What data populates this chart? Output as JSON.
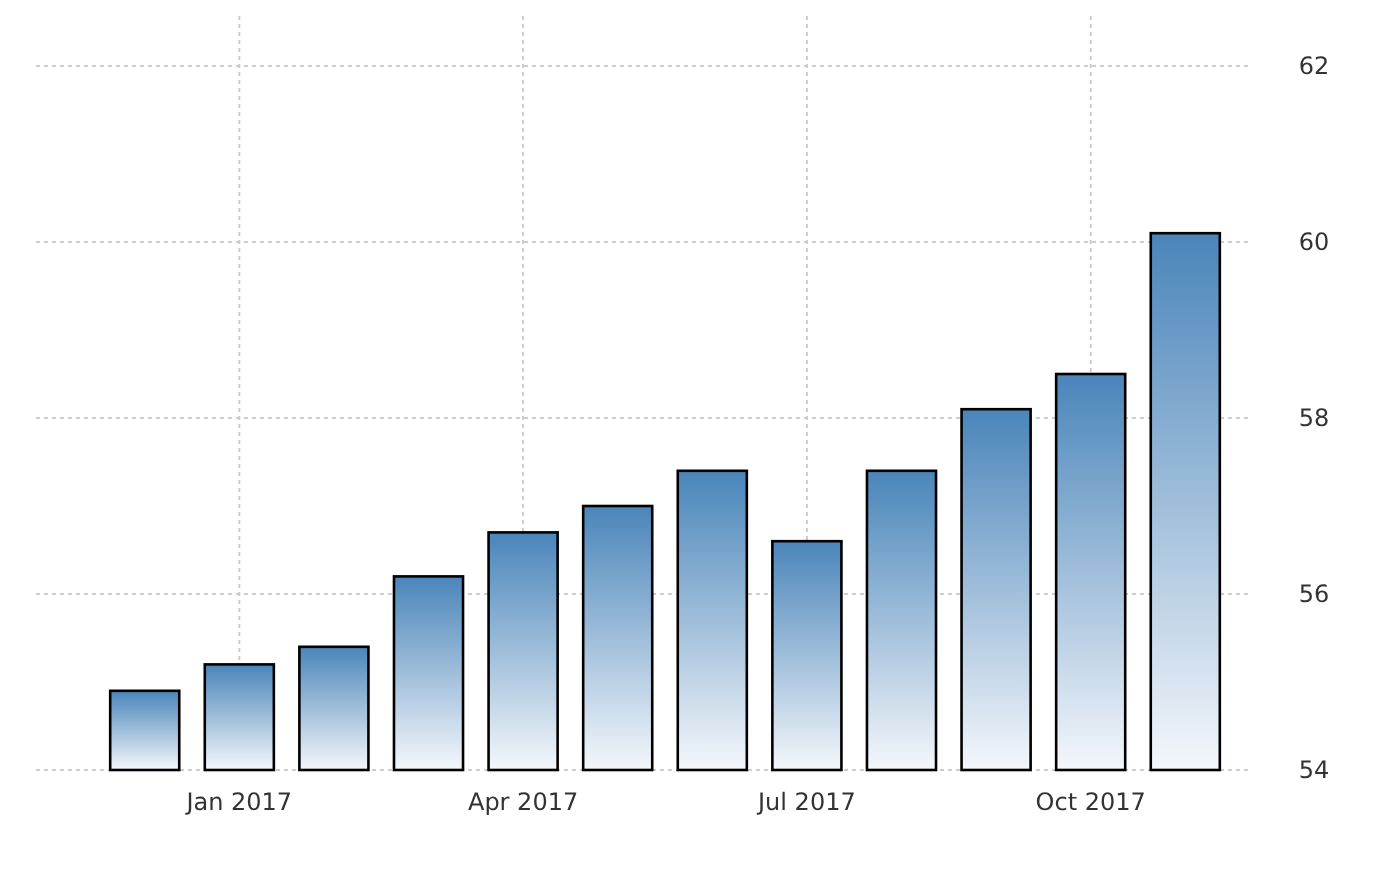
{
  "chart_data": {
    "type": "bar",
    "categories": [
      null,
      "Jan 2017",
      null,
      null,
      "Apr 2017",
      null,
      null,
      "Jul 2017",
      null,
      null,
      "Oct 2017",
      null
    ],
    "values": [
      54.9,
      55.2,
      55.4,
      56.2,
      56.7,
      57.0,
      57.4,
      56.6,
      57.4,
      58.1,
      58.5,
      60.1
    ],
    "color": "#4a85ba",
    "ylim": [
      54,
      62
    ],
    "yticks": [
      54,
      56,
      58,
      60,
      62
    ],
    "grid": true
  }
}
